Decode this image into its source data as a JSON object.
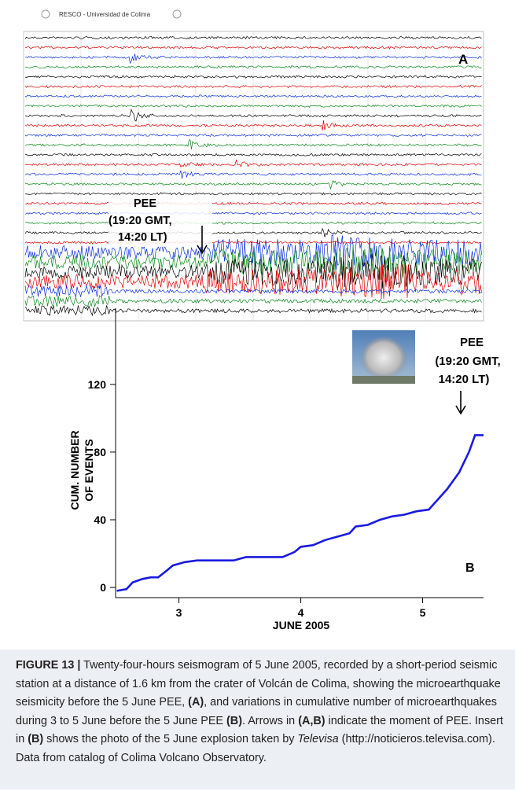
{
  "panel_a": {
    "header": "RESCO - Universidad de Colima",
    "label": "A",
    "annotation": [
      "PEE",
      "(19:20 GMT,",
      "14:20 LT)"
    ]
  },
  "chart_data": {
    "type": "line",
    "ylabel": [
      "CUM. NUMBER",
      "OF EVENTS"
    ],
    "xlabel": "JUNE 2005",
    "xlim": [
      2.48,
      5.5
    ],
    "xticks": [
      3,
      4,
      5
    ],
    "ylim": [
      -6,
      165
    ],
    "yticks": [
      0,
      40,
      80,
      120
    ],
    "x": [
      2.49,
      2.57,
      2.62,
      2.7,
      2.77,
      2.83,
      2.9,
      2.95,
      3.05,
      3.15,
      3.3,
      3.45,
      3.55,
      3.7,
      3.85,
      3.95,
      4.0,
      4.1,
      4.2,
      4.3,
      4.4,
      4.45,
      4.55,
      4.65,
      4.75,
      4.85,
      4.95,
      5.05,
      5.1,
      5.2,
      5.3,
      5.38,
      5.43,
      5.5
    ],
    "series": [
      {
        "color": "#1a1adf",
        "values": [
          -2,
          -1,
          3,
          5,
          6,
          6,
          10,
          13,
          15,
          16,
          16,
          16,
          18,
          18,
          18,
          21,
          24,
          25,
          28,
          30,
          32,
          36,
          37,
          40,
          42,
          43,
          45,
          46,
          50,
          58,
          68,
          80,
          90,
          90
        ]
      }
    ],
    "annotation": [
      "PEE",
      "(19:20 GMT,",
      "14:20 LT)"
    ],
    "label": "B"
  },
  "caption": {
    "runs": [
      "FIGURE 13 |",
      " Twenty-four-hours seismogram of 5 June 2005, recorded by a short-period seismic station at a distance of 1.6 km from the crater of Volcán de Colima, showing the microearthquake seismicity before the 5 June PEE, ",
      "(A)",
      ", and variations in cumulative number of microearthquakes during 3 to 5 June before the 5 June PEE ",
      "(B)",
      ". Arrows in ",
      "(A,B)",
      " indicate the moment of PEE. Insert in ",
      "(B)",
      " shows the photo of the 5 June explosion taken by ",
      "Televisa",
      " (http://noticieros.televisa.com). Data from catalog of Colima Volcano Observatory."
    ]
  }
}
